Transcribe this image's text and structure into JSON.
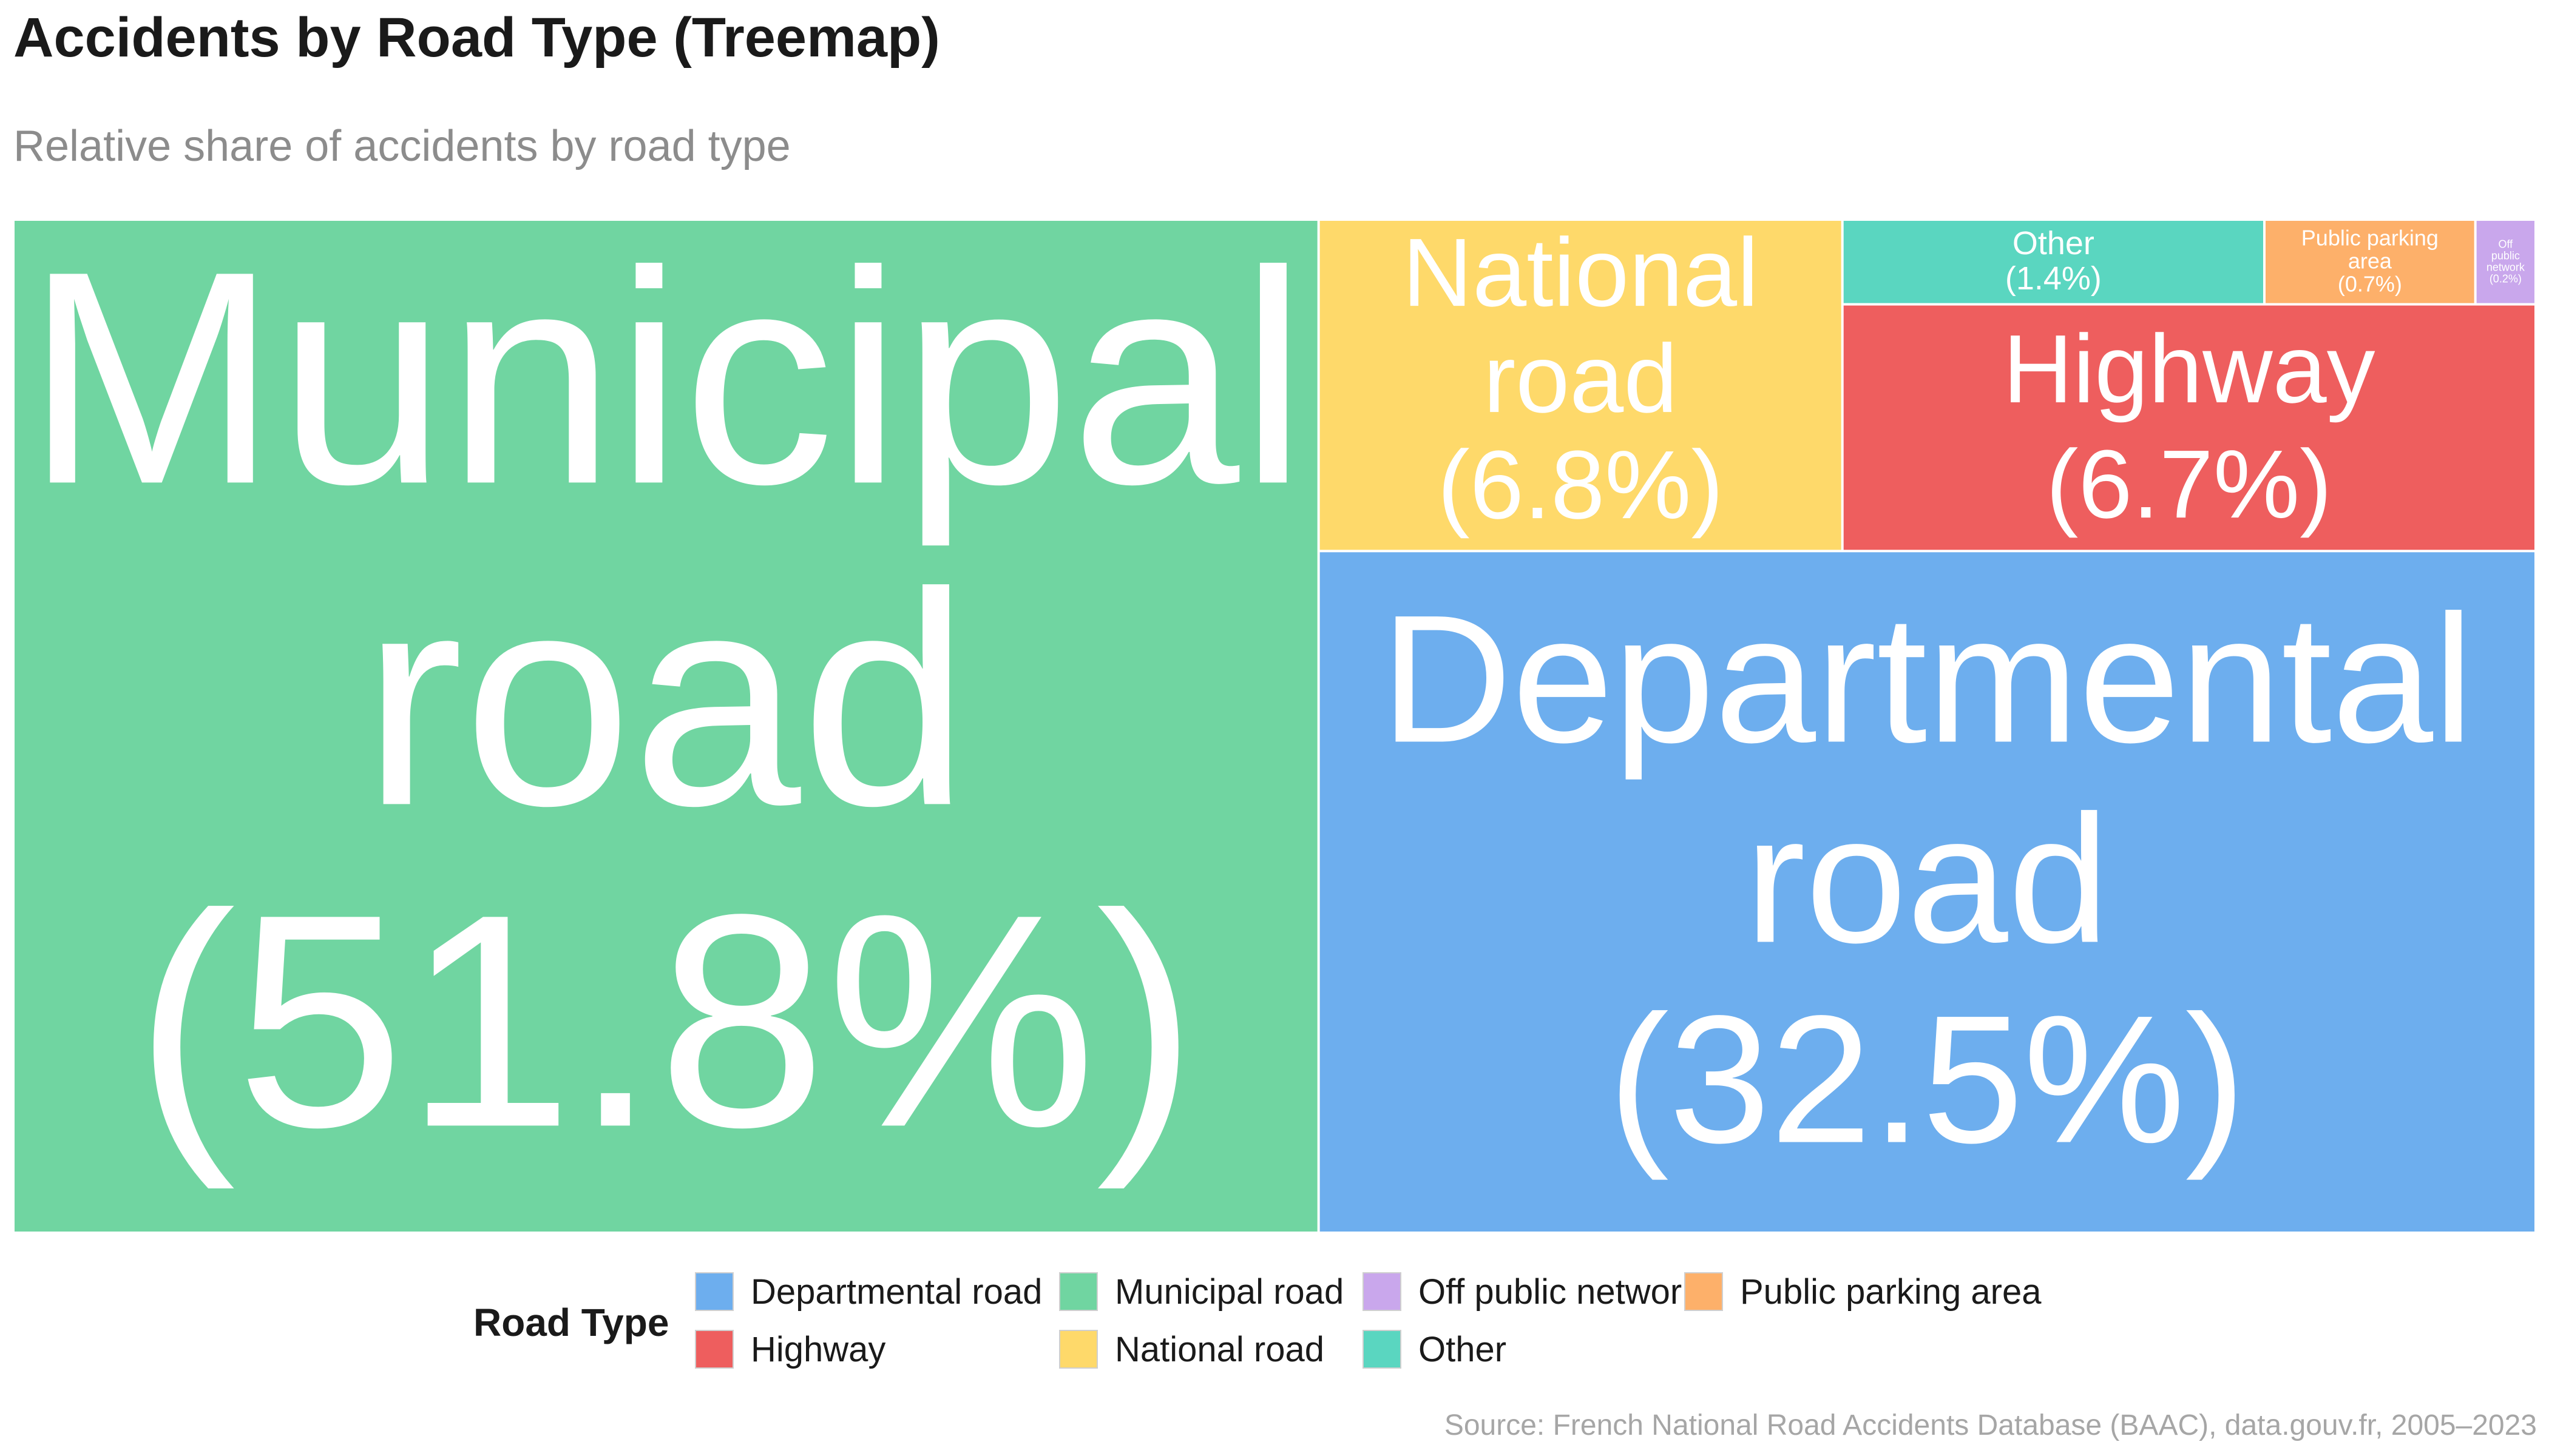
{
  "title": "Accidents by Road Type (Treemap)",
  "subtitle": "Relative share of accidents by road type",
  "source": "Source: French National Road Accidents Database (BAAC), data.gouv.fr, 2005–2023",
  "legend": {
    "title": "Road Type",
    "items": [
      {
        "label": "Departmental road",
        "color": "#6daeee"
      },
      {
        "label": "Highway",
        "color": "#ee5e5e"
      },
      {
        "label": "Municipal road",
        "color": "#70d5a1"
      },
      {
        "label": "National road",
        "color": "#fed96a"
      },
      {
        "label": "Off public network",
        "color": "#c9a7ec"
      },
      {
        "label": "Other",
        "color": "#5ad6c0"
      },
      {
        "label": "Public parking area",
        "color": "#fdb06a"
      }
    ]
  },
  "chart_data": {
    "type": "treemap",
    "unit": "%",
    "series": [
      {
        "name": "Municipal road",
        "value": 51.8,
        "label_lines": [
          "Municipal",
          "road",
          "(51.8%)"
        ],
        "color": "#70d5a1"
      },
      {
        "name": "Departmental road",
        "value": 32.5,
        "label_lines": [
          "Departmental",
          "road",
          "(32.5%)"
        ],
        "color": "#6daeee"
      },
      {
        "name": "National road",
        "value": 6.8,
        "label_lines": [
          "National",
          "road",
          "(6.8%)"
        ],
        "color": "#fed96a"
      },
      {
        "name": "Highway",
        "value": 6.7,
        "label_lines": [
          "Highway",
          "(6.7%)"
        ],
        "color": "#ee5e5e"
      },
      {
        "name": "Other",
        "value": 1.4,
        "label_lines": [
          "Other",
          "(1.4%)"
        ],
        "color": "#5ad6c0"
      },
      {
        "name": "Public parking area",
        "value": 0.7,
        "label_lines": [
          "Public parking",
          "area",
          "(0.7%)"
        ],
        "color": "#fdb06a"
      },
      {
        "name": "Off public network",
        "value": 0.2,
        "label_lines": [
          "Off",
          "public",
          "network",
          "(0.2%)"
        ],
        "color": "#c9a7ec"
      }
    ]
  }
}
